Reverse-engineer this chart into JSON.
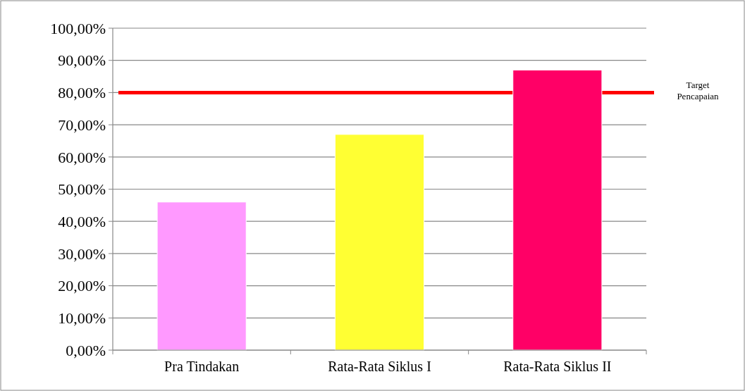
{
  "chart_data": {
    "type": "bar",
    "categories": [
      "Pra Tindakan",
      "Rata-Rata Siklus I",
      "Rata-Rata Siklus II"
    ],
    "values": [
      46,
      67,
      87
    ],
    "colors": [
      "#ff99ff",
      "#ffff33",
      "#ff0066"
    ],
    "ylim": [
      0,
      100
    ],
    "yticks": [
      {
        "value": 0,
        "label": "0,00%"
      },
      {
        "value": 10,
        "label": "10,00%"
      },
      {
        "value": 20,
        "label": "20,00%"
      },
      {
        "value": 30,
        "label": "30,00%"
      },
      {
        "value": 40,
        "label": "40,00%"
      },
      {
        "value": 50,
        "label": "50,00%"
      },
      {
        "value": 60,
        "label": "60,00%"
      },
      {
        "value": 70,
        "label": "70,00%"
      },
      {
        "value": 80,
        "label": "80,00%"
      },
      {
        "value": 90,
        "label": "90,00%"
      },
      {
        "value": 100,
        "label": "100,00%"
      }
    ],
    "grid": "y",
    "ref_lines": [
      {
        "axis": "y",
        "value": 80,
        "label": "Target Pencapaian",
        "color": "#ff0000"
      }
    ]
  }
}
